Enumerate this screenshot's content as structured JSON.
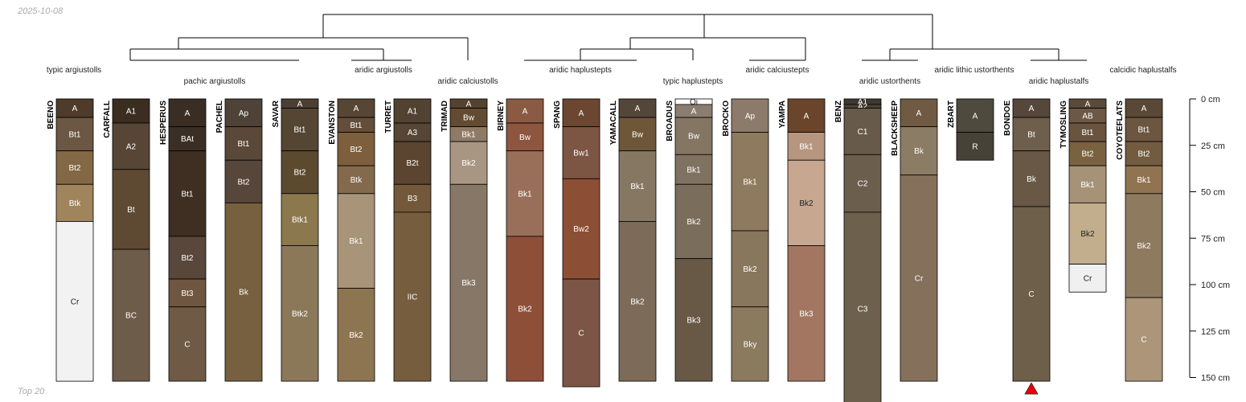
{
  "date_stamp": "2025-10-08",
  "footer": "Top 20",
  "chart_data": {
    "type": "soil-profile-sketch",
    "depth_unit": "cm",
    "depth_axis": {
      "range": [
        0,
        150
      ],
      "ticks": [
        0,
        25,
        50,
        75,
        100,
        125,
        150
      ],
      "tick_labels": [
        "0 cm",
        "25 cm",
        "50 cm",
        "75 cm",
        "100 cm",
        "125 cm",
        "150 cm"
      ]
    },
    "profiles": [
      {
        "name": "BEENO",
        "class": "typic argiustolls",
        "horizons": [
          {
            "name": "A",
            "top": 0,
            "bottom": 10,
            "color": "#4e3b2a"
          },
          {
            "name": "Bt1",
            "top": 10,
            "bottom": 28,
            "color": "#6b5743"
          },
          {
            "name": "Bt2",
            "top": 28,
            "bottom": 46,
            "color": "#836845"
          },
          {
            "name": "Btk",
            "top": 46,
            "bottom": 66,
            "color": "#a0845c"
          },
          {
            "name": "Cr",
            "top": 66,
            "bottom": 152,
            "color": "#f2f2f2"
          }
        ]
      },
      {
        "name": "CARFALL",
        "class": "pachic argiustolls",
        "horizons": [
          {
            "name": "A1",
            "top": 0,
            "bottom": 13,
            "color": "#3c2d21"
          },
          {
            "name": "A2",
            "top": 13,
            "bottom": 38,
            "color": "#574636"
          },
          {
            "name": "Bt",
            "top": 38,
            "bottom": 81,
            "color": "#5e4a33"
          },
          {
            "name": "BC",
            "top": 81,
            "bottom": 152,
            "color": "#6e5c4a"
          }
        ]
      },
      {
        "name": "HESPERUS",
        "class": "pachic argiustolls",
        "horizons": [
          {
            "name": "A",
            "top": 0,
            "bottom": 15,
            "color": "#3a2e24"
          },
          {
            "name": "BAt",
            "top": 15,
            "bottom": 28,
            "color": "#3b2f25"
          },
          {
            "name": "Bt1",
            "top": 28,
            "bottom": 74,
            "color": "#3e2f22"
          },
          {
            "name": "Bt2",
            "top": 74,
            "bottom": 97,
            "color": "#58473a"
          },
          {
            "name": "Bt3",
            "top": 97,
            "bottom": 112,
            "color": "#6f5640"
          },
          {
            "name": "C",
            "top": 112,
            "bottom": 152,
            "color": "#6e5a45"
          }
        ]
      },
      {
        "name": "PACHEL",
        "class": "pachic argiustolls",
        "horizons": [
          {
            "name": "Ap",
            "top": 0,
            "bottom": 15,
            "color": "#4f4237"
          },
          {
            "name": "Bt1",
            "top": 15,
            "bottom": 33,
            "color": "#5a4838"
          },
          {
            "name": "Bt2",
            "top": 33,
            "bottom": 56,
            "color": "#57463a"
          },
          {
            "name": "Bk",
            "top": 56,
            "bottom": 152,
            "color": "#76603f"
          }
        ]
      },
      {
        "name": "SAVAR",
        "class": "pachic argiustolls",
        "horizons": [
          {
            "name": "A",
            "top": 0,
            "bottom": 5,
            "color": "#4b3f33"
          },
          {
            "name": "Bt1",
            "top": 5,
            "bottom": 28,
            "color": "#554634"
          },
          {
            "name": "Bt2",
            "top": 28,
            "bottom": 51,
            "color": "#5c4a2f"
          },
          {
            "name": "Btk1",
            "top": 51,
            "bottom": 79,
            "color": "#8c784d"
          },
          {
            "name": "Btk2",
            "top": 79,
            "bottom": 152,
            "color": "#8b7859"
          }
        ]
      },
      {
        "name": "EVANSTON",
        "class": "aridic argiustolls",
        "horizons": [
          {
            "name": "A",
            "top": 0,
            "bottom": 10,
            "color": "#574634"
          },
          {
            "name": "Bt1",
            "top": 10,
            "bottom": 18,
            "color": "#644e39"
          },
          {
            "name": "Bt2",
            "top": 18,
            "bottom": 36,
            "color": "#7d5f3e"
          },
          {
            "name": "Btk",
            "top": 36,
            "bottom": 51,
            "color": "#846a4c"
          },
          {
            "name": "Bk1",
            "top": 51,
            "bottom": 102,
            "color": "#a89478"
          },
          {
            "name": "Bk2",
            "top": 102,
            "bottom": 152,
            "color": "#8e7551"
          }
        ]
      },
      {
        "name": "TURRET",
        "class": "aridic argiustolls",
        "horizons": [
          {
            "name": "A1",
            "top": 0,
            "bottom": 13,
            "color": "#524232"
          },
          {
            "name": "A3",
            "top": 13,
            "bottom": 23,
            "color": "#574535"
          },
          {
            "name": "B2t",
            "top": 23,
            "bottom": 46,
            "color": "#5b4530"
          },
          {
            "name": "B3",
            "top": 46,
            "bottom": 61,
            "color": "#74583a"
          },
          {
            "name": "IIC",
            "top": 61,
            "bottom": 152,
            "color": "#765d3e"
          }
        ]
      },
      {
        "name": "TRIMAD",
        "class": "aridic calciustolls",
        "horizons": [
          {
            "name": "A",
            "top": 0,
            "bottom": 5,
            "color": "#54432f"
          },
          {
            "name": "Bw",
            "top": 5,
            "bottom": 15,
            "color": "#624b30"
          },
          {
            "name": "Bk1",
            "top": 15,
            "bottom": 23,
            "color": "#8f7a66"
          },
          {
            "name": "Bk2",
            "top": 23,
            "bottom": 46,
            "color": "#a89683"
          },
          {
            "name": "Bk3",
            "top": 46,
            "bottom": 152,
            "color": "#877766"
          }
        ]
      },
      {
        "name": "BIRNEY",
        "class": "aridic haplustepts",
        "horizons": [
          {
            "name": "A",
            "top": 0,
            "bottom": 13,
            "color": "#8b5a43"
          },
          {
            "name": "Bw",
            "top": 13,
            "bottom": 28,
            "color": "#8e563f"
          },
          {
            "name": "Bk1",
            "top": 28,
            "bottom": 74,
            "color": "#9a6f59"
          },
          {
            "name": "Bk2",
            "top": 74,
            "bottom": 152,
            "color": "#8e4f39"
          }
        ]
      },
      {
        "name": "SPANG",
        "class": "aridic haplustepts",
        "horizons": [
          {
            "name": "A",
            "top": 0,
            "bottom": 15,
            "color": "#6b4631"
          },
          {
            "name": "Bw1",
            "top": 15,
            "bottom": 43,
            "color": "#7d5543"
          },
          {
            "name": "Bw2",
            "top": 43,
            "bottom": 97,
            "color": "#8c4f36"
          },
          {
            "name": "C",
            "top": 97,
            "bottom": 155,
            "color": "#7c5546"
          }
        ]
      },
      {
        "name": "YAMACALL",
        "class": "typic haplustepts",
        "horizons": [
          {
            "name": "A",
            "top": 0,
            "bottom": 10,
            "color": "#55463a"
          },
          {
            "name": "Bw",
            "top": 10,
            "bottom": 28,
            "color": "#6e5738"
          },
          {
            "name": "Bk1",
            "top": 28,
            "bottom": 66,
            "color": "#867763"
          },
          {
            "name": "Bk2",
            "top": 66,
            "bottom": 152,
            "color": "#7c6b59"
          }
        ]
      },
      {
        "name": "BROADUS",
        "class": "typic haplustepts",
        "horizons": [
          {
            "name": "Oi",
            "top": 0,
            "bottom": 3,
            "color": "#ffffff"
          },
          {
            "name": "A",
            "top": 3,
            "bottom": 10,
            "color": "#8b7e70"
          },
          {
            "name": "Bw",
            "top": 10,
            "bottom": 30,
            "color": "#857664"
          },
          {
            "name": "Bk1",
            "top": 30,
            "bottom": 46,
            "color": "#807260"
          },
          {
            "name": "Bk2",
            "top": 46,
            "bottom": 86,
            "color": "#7b6d5b"
          },
          {
            "name": "Bk3",
            "top": 86,
            "bottom": 152,
            "color": "#675946"
          }
        ]
      },
      {
        "name": "BROCKO",
        "class": "aridic calciustepts",
        "horizons": [
          {
            "name": "Ap",
            "top": 0,
            "bottom": 18,
            "color": "#8c7b6b"
          },
          {
            "name": "Bk1",
            "top": 18,
            "bottom": 71,
            "color": "#8e7a5f"
          },
          {
            "name": "Bk2",
            "top": 71,
            "bottom": 112,
            "color": "#88765d"
          },
          {
            "name": "Bky",
            "top": 112,
            "bottom": 152,
            "color": "#8a7a5e"
          }
        ]
      },
      {
        "name": "YAMPA",
        "class": "aridic calciustepts",
        "horizons": [
          {
            "name": "A",
            "top": 0,
            "bottom": 18,
            "color": "#6b452b"
          },
          {
            "name": "Bk1",
            "top": 18,
            "bottom": 33,
            "color": "#b79680"
          },
          {
            "name": "Bk2",
            "top": 33,
            "bottom": 79,
            "color": "#c7a790"
          },
          {
            "name": "Bk3",
            "top": 79,
            "bottom": 152,
            "color": "#a27661"
          }
        ]
      },
      {
        "name": "BENZ",
        "class": "aridic ustorthents",
        "horizons": [
          {
            "name": "A1",
            "top": 0,
            "bottom": 3,
            "color": "#3f3a31"
          },
          {
            "name": "A2",
            "top": 3,
            "bottom": 5,
            "color": "#4a4235"
          },
          {
            "name": "C1",
            "top": 5,
            "bottom": 30,
            "color": "#675a4a"
          },
          {
            "name": "C2",
            "top": 30,
            "bottom": 61,
            "color": "#6b5e4d"
          },
          {
            "name": "C3",
            "top": 61,
            "bottom": 165,
            "color": "#6d604c"
          }
        ]
      },
      {
        "name": "BLACKSHEEP",
        "class": "aridic ustorthents",
        "horizons": [
          {
            "name": "A",
            "top": 0,
            "bottom": 15,
            "color": "#705a43"
          },
          {
            "name": "Bk",
            "top": 15,
            "bottom": 41,
            "color": "#8a7c65"
          },
          {
            "name": "Cr",
            "top": 41,
            "bottom": 152,
            "color": "#85705c"
          }
        ]
      },
      {
        "name": "ZBART",
        "class": "aridic lithic ustorthents",
        "horizons": [
          {
            "name": "A",
            "top": 0,
            "bottom": 18,
            "color": "#4f4a3e"
          },
          {
            "name": "R",
            "top": 18,
            "bottom": 33,
            "color": "#474238"
          }
        ]
      },
      {
        "name": "BONDOE",
        "class": "aridic haplustalfs",
        "horizons": [
          {
            "name": "A",
            "top": 0,
            "bottom": 10,
            "color": "#56473b"
          },
          {
            "name": "Bt",
            "top": 10,
            "bottom": 28,
            "color": "#6e5f4c"
          },
          {
            "name": "Bk",
            "top": 28,
            "bottom": 58,
            "color": "#685845"
          },
          {
            "name": "C",
            "top": 58,
            "bottom": 152,
            "color": "#6e5f4a"
          }
        ]
      },
      {
        "name": "TYMOSLING",
        "class": "aridic haplustalfs",
        "horizons": [
          {
            "name": "A",
            "top": 0,
            "bottom": 5,
            "color": "#5a4a3a"
          },
          {
            "name": "AB",
            "top": 5,
            "bottom": 13,
            "color": "#6c5845"
          },
          {
            "name": "Bt1",
            "top": 13,
            "bottom": 23,
            "color": "#6a5440"
          },
          {
            "name": "Bt2",
            "top": 23,
            "bottom": 36,
            "color": "#7a6140"
          },
          {
            "name": "Bk1",
            "top": 36,
            "bottom": 56,
            "color": "#a69377"
          },
          {
            "name": "Bk2",
            "top": 56,
            "bottom": 89,
            "color": "#c2ae8d"
          },
          {
            "name": "Cr",
            "top": 89,
            "bottom": 104,
            "color": "#f0f0f0"
          }
        ]
      },
      {
        "name": "COYOTEFLATS",
        "class": "calcidic haplustalfs",
        "horizons": [
          {
            "name": "A",
            "top": 0,
            "bottom": 10,
            "color": "#5a4836"
          },
          {
            "name": "Bt1",
            "top": 10,
            "bottom": 23,
            "color": "#6c5640"
          },
          {
            "name": "Bt2",
            "top": 23,
            "bottom": 36,
            "color": "#735b40"
          },
          {
            "name": "Bk1",
            "top": 36,
            "bottom": 51,
            "color": "#907451"
          },
          {
            "name": "Bk2",
            "top": 51,
            "bottom": 107,
            "color": "#8e7a5f"
          },
          {
            "name": "C",
            "top": 107,
            "bottom": 152,
            "color": "#ac9579"
          }
        ]
      }
    ],
    "marker": {
      "profile": "BONDOE",
      "symbol": "triangle",
      "color": "#e8000e"
    },
    "class_labels": [
      {
        "text": "typic argiustolls"
      },
      {
        "text": "pachic argiustolls"
      },
      {
        "text": "aridic argiustolls"
      },
      {
        "text": "aridic calciustolls"
      },
      {
        "text": "aridic haplustepts"
      },
      {
        "text": "typic haplustepts"
      },
      {
        "text": "aridic calciustepts"
      },
      {
        "text": "aridic ustorthents"
      },
      {
        "text": "aridic lithic ustorthents"
      },
      {
        "text": "aridic haplustalfs"
      },
      {
        "text": "calcidic haplustalfs"
      }
    ]
  }
}
